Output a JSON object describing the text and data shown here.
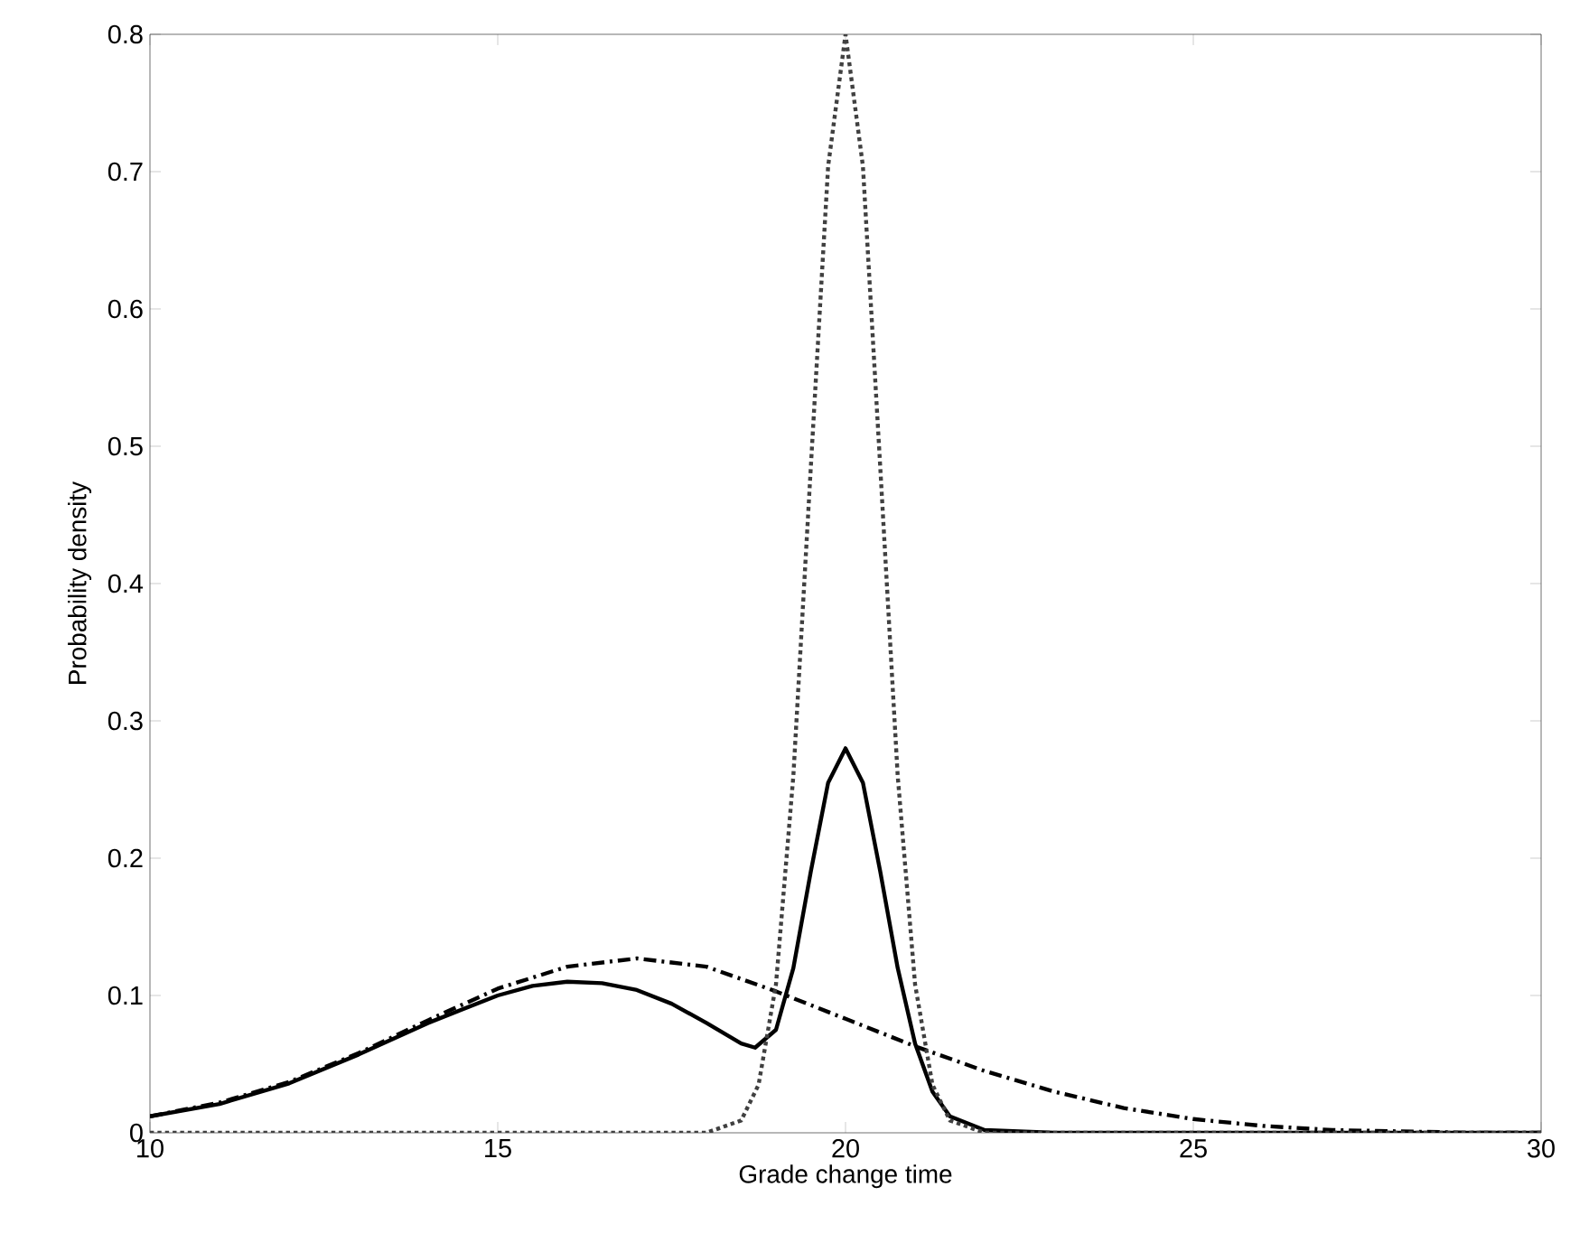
{
  "chart_data": {
    "type": "line",
    "xlabel": "Grade change time",
    "ylabel": "Probability density",
    "xlim": [
      10,
      30
    ],
    "ylim": [
      0,
      0.8
    ],
    "xticks": [
      10,
      15,
      20,
      25,
      30
    ],
    "yticks": [
      0,
      0.1,
      0.2,
      0.3,
      0.4,
      0.5,
      0.6,
      0.7,
      0.8
    ],
    "marker": "none",
    "series": [
      {
        "color": "#000000",
        "line_style": "solid",
        "x": [
          10,
          11,
          12,
          13,
          14,
          15,
          15.5,
          16,
          16.5,
          17,
          17.5,
          18,
          18.5,
          18.7,
          19,
          19.25,
          19.5,
          19.75,
          20,
          20.25,
          20.5,
          20.75,
          21,
          21.25,
          21.5,
          22,
          23,
          30
        ],
        "values": [
          0.012,
          0.021,
          0.036,
          0.057,
          0.08,
          0.1,
          0.107,
          0.11,
          0.109,
          0.104,
          0.094,
          0.08,
          0.065,
          0.062,
          0.075,
          0.12,
          0.19,
          0.255,
          0.28,
          0.255,
          0.19,
          0.12,
          0.065,
          0.03,
          0.012,
          0.002,
          0,
          0
        ]
      },
      {
        "color": "#000000",
        "line_style": "dashed",
        "x": [
          10,
          11,
          12,
          13,
          14,
          15,
          16,
          17,
          18,
          19,
          20,
          21,
          22,
          23,
          24,
          25,
          26,
          27,
          28,
          29,
          30
        ],
        "values": [
          0.012,
          0.022,
          0.037,
          0.058,
          0.082,
          0.105,
          0.121,
          0.127,
          0.121,
          0.103,
          0.083,
          0.063,
          0.045,
          0.03,
          0.018,
          0.01,
          0.005,
          0.002,
          0.001,
          0,
          0
        ]
      },
      {
        "color": "#404040",
        "line_style": "dotted",
        "x": [
          10,
          18,
          18.5,
          18.75,
          19,
          19.25,
          19.5,
          19.75,
          20,
          20.25,
          20.5,
          20.75,
          21,
          21.25,
          21.5,
          22,
          30
        ],
        "values": [
          0,
          0,
          0.009,
          0.035,
          0.108,
          0.26,
          0.484,
          0.704,
          0.8,
          0.704,
          0.484,
          0.26,
          0.108,
          0.035,
          0.009,
          0,
          0
        ]
      }
    ]
  }
}
